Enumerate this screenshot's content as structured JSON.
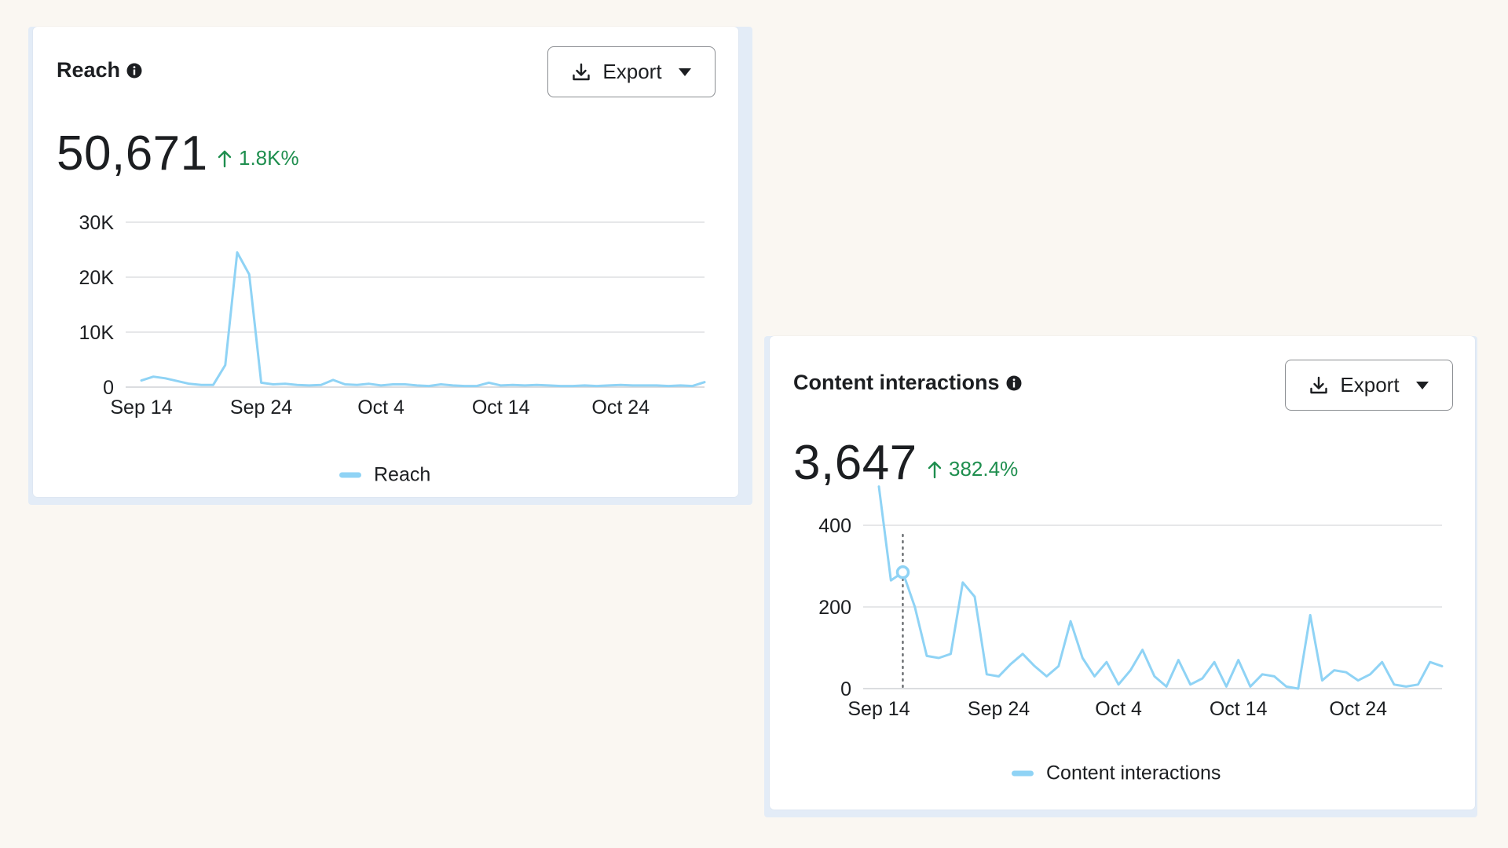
{
  "colors": {
    "line": "#8fd3f5",
    "positive": "#1e8e4e",
    "grid": "#dddfe2",
    "text": "#1c1e21"
  },
  "cards": [
    {
      "title": "Reach",
      "info_icon": "info-circle-icon",
      "export_label": "Export",
      "export_icon": "download-icon",
      "dropdown_icon": "caret-down-icon",
      "value": "50,671",
      "delta_icon": "arrow-up-icon",
      "delta": "1.8K%",
      "legend": "Reach"
    },
    {
      "title": "Content interactions",
      "info_icon": "info-circle-icon",
      "export_label": "Export",
      "export_icon": "download-icon",
      "dropdown_icon": "caret-down-icon",
      "value": "3,647",
      "delta_icon": "arrow-up-icon",
      "delta": "382.4%",
      "legend": "Content interactions"
    }
  ],
  "chart_data": [
    {
      "type": "line",
      "ylim": [
        0,
        30000
      ],
      "yticks": [
        0,
        10000,
        20000,
        30000
      ],
      "ytick_labels": [
        "0",
        "10K",
        "20K",
        "30K"
      ],
      "xlabels": [
        "Sep 14",
        "Sep 24",
        "Oct 4",
        "Oct 14",
        "Oct 24"
      ],
      "xlabel_index": [
        0,
        10,
        20,
        30,
        40
      ],
      "grid": true,
      "legend_position": "bottom-center",
      "series": [
        {
          "name": "Reach",
          "values": [
            1200,
            1900,
            1600,
            1100,
            600,
            400,
            400,
            4000,
            24500,
            20500,
            800,
            500,
            600,
            400,
            300,
            400,
            1300,
            500,
            400,
            600,
            300,
            500,
            500,
            300,
            200,
            500,
            300,
            200,
            200,
            800,
            300,
            400,
            300,
            400,
            300,
            200,
            200,
            300,
            200,
            300,
            400,
            300,
            300,
            300,
            200,
            300,
            200,
            900
          ]
        }
      ]
    },
    {
      "type": "line",
      "ylim": [
        0,
        500
      ],
      "yticks": [
        0,
        200,
        400
      ],
      "ytick_labels": [
        "0",
        "200",
        "400"
      ],
      "xlabels": [
        "Sep 14",
        "Sep 24",
        "Oct 4",
        "Oct 14",
        "Oct 24"
      ],
      "xlabel_index": [
        0,
        10,
        20,
        30,
        40
      ],
      "grid": true,
      "legend_position": "bottom-center",
      "hover_index": 2,
      "series": [
        {
          "name": "Content interactions",
          "values": [
            495,
            265,
            285,
            200,
            80,
            75,
            85,
            260,
            225,
            35,
            30,
            60,
            85,
            55,
            30,
            55,
            165,
            75,
            30,
            65,
            10,
            45,
            95,
            30,
            5,
            70,
            10,
            25,
            65,
            5,
            70,
            5,
            35,
            30,
            5,
            0,
            180,
            20,
            45,
            40,
            20,
            35,
            65,
            10,
            5,
            10,
            65,
            55
          ]
        }
      ]
    }
  ]
}
